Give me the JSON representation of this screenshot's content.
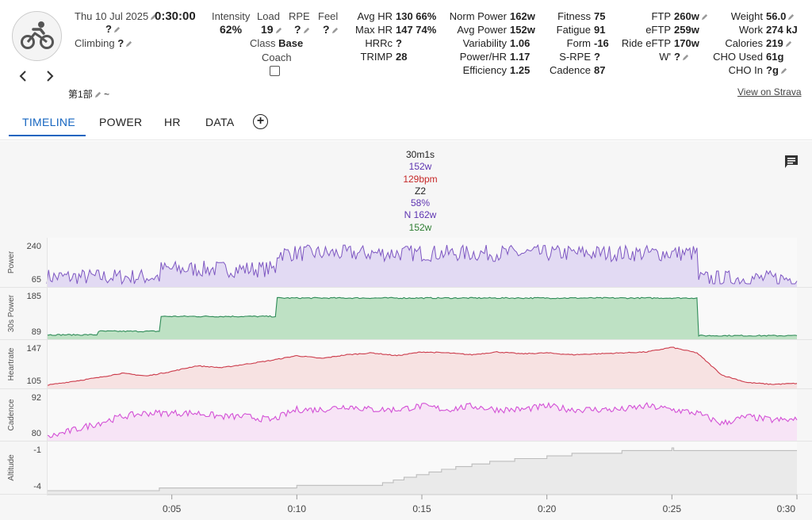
{
  "activity": {
    "date": "Thu 10 Jul 2025",
    "duration": "0:30:00",
    "name_value": "?",
    "climbing_label": "Climbing",
    "climbing_value": "?",
    "description": "第1部",
    "tilde": "~",
    "prev_icon": "chevron-left-icon",
    "next_icon": "chevron-right-icon",
    "type_icon": "cycling-icon"
  },
  "metrics": {
    "intensity_label": "Intensity",
    "intensity_value": "62%",
    "load_label": "Load",
    "load_value": "19",
    "rpe_label": "RPE",
    "rpe_value": "?",
    "feel_label": "Feel",
    "feel_value": "?",
    "class_label": "Class",
    "class_value": "Base",
    "coach_label": "Coach",
    "avg_hr_label": "Avg HR",
    "avg_hr_value": "130 66%",
    "max_hr_label": "Max HR",
    "max_hr_value": "147 74%",
    "hrrc_label": "HRRc",
    "hrrc_value": "?",
    "trimp_label": "TRIMP",
    "trimp_value": "28",
    "norm_power_label": "Norm Power",
    "norm_power_value": "162w",
    "avg_power_label": "Avg Power",
    "avg_power_value": "152w",
    "variability_label": "Variability",
    "variability_value": "1.06",
    "power_hr_label": "Power/HR",
    "power_hr_value": "1.17",
    "efficiency_label": "Efficiency",
    "efficiency_value": "1.25",
    "fitness_label": "Fitness",
    "fitness_value": "75",
    "fatigue_label": "Fatigue",
    "fatigue_value": "91",
    "form_label": "Form",
    "form_value": "-16",
    "srpe_label": "S-RPE",
    "srpe_value": "?",
    "cadence_label": "Cadence",
    "cadence_value": "87",
    "ftp_label": "FTP",
    "ftp_value": "260w",
    "eftp_label": "eFTP",
    "eftp_value": "259w",
    "ride_eftp_label": "Ride eFTP",
    "ride_eftp_value": "170w",
    "wprime_label": "W'",
    "wprime_value": "?",
    "weight_label": "Weight",
    "weight_value": "56.0",
    "work_label": "Work",
    "work_value": "274 kJ",
    "calories_label": "Calories",
    "calories_value": "219",
    "cho_used_label": "CHO Used",
    "cho_used_value": "61g",
    "cho_in_label": "CHO In",
    "cho_in_value": "?g",
    "view_on_strava": "View on Strava"
  },
  "tabs": [
    "TIMELINE",
    "POWER",
    "HR",
    "DATA"
  ],
  "active_tab": "TIMELINE",
  "annotation": {
    "time": "30m1s",
    "power": "152w",
    "hr": "129bpm",
    "zone": "Z2",
    "pct": "58%",
    "norm": "N 162w",
    "avg30": "152w"
  },
  "colors": {
    "accent": "#1565c0",
    "power": "#7e57c2",
    "power30": "#2e8b57",
    "hr": "#cc3b4b",
    "cadence": "#d34fd6",
    "altitude": "#bdbdbd"
  },
  "chart_data": {
    "type": "line",
    "x_unit": "time",
    "xticks": [
      "0:05",
      "0:10",
      "0:15",
      "0:20",
      "0:25",
      "0:30"
    ],
    "xlim_minutes": [
      0,
      30
    ],
    "series": [
      {
        "name": "Power",
        "yticks": [
          "240",
          "65"
        ],
        "ylim": [
          65,
          240
        ],
        "segments": [
          {
            "from": 0,
            "to": 4.5,
            "value": 95
          },
          {
            "from": 4.5,
            "to": 9.2,
            "value": 130
          },
          {
            "from": 9.2,
            "to": 26,
            "value": 200
          },
          {
            "from": 26,
            "to": 30,
            "value": 88
          }
        ]
      },
      {
        "name": "30s Power",
        "yticks": [
          "185",
          "89"
        ],
        "ylim": [
          89,
          185
        ],
        "segments": [
          {
            "from": 0,
            "to": 2,
            "value": 92
          },
          {
            "from": 2,
            "to": 4.5,
            "value": 100
          },
          {
            "from": 4.5,
            "to": 9.2,
            "value": 134
          },
          {
            "from": 9.2,
            "to": 26,
            "value": 176
          },
          {
            "from": 26,
            "to": 30,
            "value": 90
          }
        ]
      },
      {
        "name": "Heartrate",
        "yticks": [
          "147",
          "105"
        ],
        "ylim": [
          105,
          147
        ],
        "points": [
          [
            0,
            105
          ],
          [
            1,
            109
          ],
          [
            2,
            113
          ],
          [
            3,
            118
          ],
          [
            4,
            115
          ],
          [
            5,
            120
          ],
          [
            6,
            126
          ],
          [
            7,
            124
          ],
          [
            8,
            128
          ],
          [
            9,
            132
          ],
          [
            10,
            137
          ],
          [
            11,
            134
          ],
          [
            12,
            138
          ],
          [
            13,
            140
          ],
          [
            14,
            137
          ],
          [
            15,
            141
          ],
          [
            16,
            140
          ],
          [
            17,
            138
          ],
          [
            18,
            141
          ],
          [
            19,
            139
          ],
          [
            20,
            140
          ],
          [
            21,
            138
          ],
          [
            22,
            139
          ],
          [
            23,
            140
          ],
          [
            24,
            141
          ],
          [
            25,
            146
          ],
          [
            26,
            140
          ],
          [
            27,
            116
          ],
          [
            28,
            108
          ],
          [
            29,
            106
          ],
          [
            30,
            107
          ]
        ]
      },
      {
        "name": "Cadence",
        "yticks": [
          "92",
          "80"
        ],
        "ylim": [
          80,
          92
        ],
        "points": [
          [
            0,
            80
          ],
          [
            1,
            82
          ],
          [
            2,
            84
          ],
          [
            3,
            86
          ],
          [
            4,
            87
          ],
          [
            5,
            87
          ],
          [
            6,
            87
          ],
          [
            7,
            86
          ],
          [
            8,
            86
          ],
          [
            9,
            85
          ],
          [
            10,
            88
          ],
          [
            11,
            88
          ],
          [
            12,
            89
          ],
          [
            13,
            88
          ],
          [
            14,
            88
          ],
          [
            15,
            89
          ],
          [
            16,
            88
          ],
          [
            17,
            89
          ],
          [
            18,
            88
          ],
          [
            19,
            88
          ],
          [
            20,
            89
          ],
          [
            21,
            88
          ],
          [
            22,
            88
          ],
          [
            23,
            88
          ],
          [
            24,
            89
          ],
          [
            25,
            88
          ],
          [
            26,
            87
          ],
          [
            27,
            84
          ],
          [
            28,
            86
          ],
          [
            29,
            85
          ],
          [
            30,
            85
          ]
        ]
      },
      {
        "name": "Altitude",
        "yticks": [
          "-1",
          "-4"
        ],
        "ylim": [
          -4.2,
          -1
        ],
        "points": [
          [
            0,
            -4.2
          ],
          [
            4,
            -4.2
          ],
          [
            5,
            -4.0
          ],
          [
            7,
            -4.0
          ],
          [
            10,
            -3.9
          ],
          [
            13,
            -3.9
          ],
          [
            14,
            -3.4
          ],
          [
            15,
            -3.0
          ],
          [
            16,
            -2.6
          ],
          [
            17,
            -2.3
          ],
          [
            18,
            -2.0
          ],
          [
            20,
            -1.7
          ],
          [
            21,
            -1.5
          ],
          [
            23,
            -1.3
          ],
          [
            25,
            -1.1
          ],
          [
            28,
            -1.2
          ],
          [
            30,
            -1.3
          ]
        ]
      }
    ]
  }
}
